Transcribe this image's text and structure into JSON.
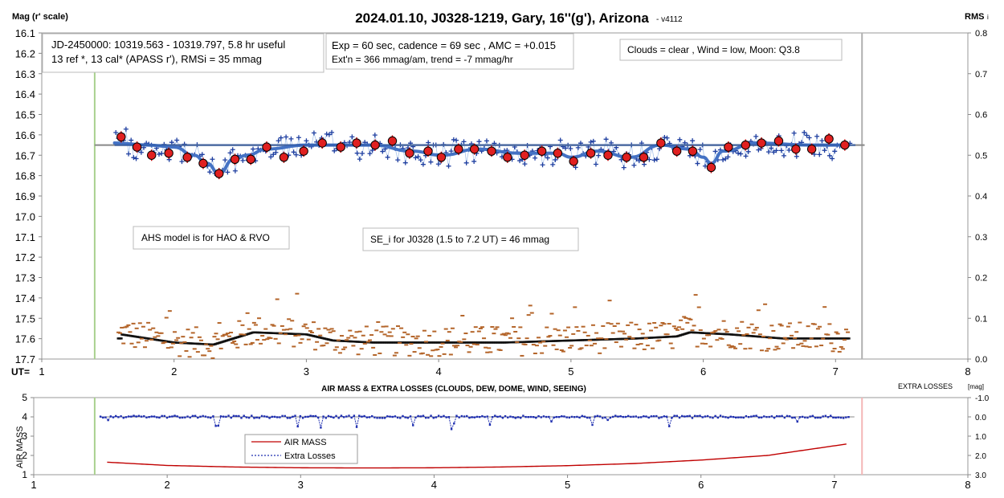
{
  "chart_data": [
    {
      "type": "scatter",
      "title": "2024.01.10, J0328-1219, Gary, 16''(g'), Arizona",
      "version": "- v4112",
      "ylabel": "Mag (r' scale)",
      "y2label": "RMS",
      "y2label_suffix": "i",
      "xlabel": "UT=",
      "xlim": [
        1,
        8
      ],
      "ylim": [
        16.1,
        17.7
      ],
      "y2lim": [
        0.0,
        0.8
      ],
      "xticks": [
        "1",
        "2",
        "3",
        "4",
        "5",
        "6",
        "7",
        "8"
      ],
      "yticks": [
        "16.1",
        "16.2",
        "16.3",
        "16.4",
        "16.5",
        "16.6",
        "16.7",
        "16.8",
        "16.9",
        "17.0",
        "17.1",
        "17.2",
        "17.3",
        "17.4",
        "17.5",
        "17.6",
        "17.7"
      ],
      "y2ticks": [
        "0.8",
        "0.7",
        "0.6",
        "0.5",
        "0.4",
        "0.3",
        "0.2",
        "0.1",
        "0.0"
      ],
      "vlines": {
        "start_ut": 1.4,
        "end_ut": 7.2
      },
      "reference_line_mag": 16.65,
      "annotations": {
        "jd": "JD-2450000: 10319.563 - 10319.797, 5.8 hr useful",
        "refs": "13 ref *, 13 cal*  (APASS r'), RMSi = 35 mmag",
        "exp": "Exp = 60 sec, cadence = 69 sec , AMC = +0.015",
        "ext": "Ext'n = 366 mmag/am, trend = -7 mmag/hr",
        "clouds": "Clouds = clear , Wind = low,  Moon:  Q3.8",
        "ahs": "AHS model is for HAO & RVO",
        "se": "SE_i for J0328 (1.5 to 7.2 UT) = 46 mmag"
      },
      "binned_points": [
        {
          "x": 1.6,
          "y": 16.61
        },
        {
          "x": 1.72,
          "y": 16.66
        },
        {
          "x": 1.83,
          "y": 16.7
        },
        {
          "x": 1.96,
          "y": 16.69
        },
        {
          "x": 2.1,
          "y": 16.71
        },
        {
          "x": 2.22,
          "y": 16.74
        },
        {
          "x": 2.34,
          "y": 16.79
        },
        {
          "x": 2.46,
          "y": 16.72
        },
        {
          "x": 2.58,
          "y": 16.72
        },
        {
          "x": 2.7,
          "y": 16.66
        },
        {
          "x": 2.83,
          "y": 16.71
        },
        {
          "x": 2.98,
          "y": 16.68
        },
        {
          "x": 3.12,
          "y": 16.64
        },
        {
          "x": 3.26,
          "y": 16.66
        },
        {
          "x": 3.38,
          "y": 16.64
        },
        {
          "x": 3.52,
          "y": 16.65
        },
        {
          "x": 3.65,
          "y": 16.63
        },
        {
          "x": 3.78,
          "y": 16.69
        },
        {
          "x": 3.92,
          "y": 16.68
        },
        {
          "x": 4.02,
          "y": 16.71
        },
        {
          "x": 4.15,
          "y": 16.67
        },
        {
          "x": 4.27,
          "y": 16.67
        },
        {
          "x": 4.4,
          "y": 16.68
        },
        {
          "x": 4.52,
          "y": 16.71
        },
        {
          "x": 4.65,
          "y": 16.7
        },
        {
          "x": 4.78,
          "y": 16.68
        },
        {
          "x": 4.9,
          "y": 16.69
        },
        {
          "x": 5.02,
          "y": 16.73
        },
        {
          "x": 5.15,
          "y": 16.69
        },
        {
          "x": 5.28,
          "y": 16.7
        },
        {
          "x": 5.42,
          "y": 16.71
        },
        {
          "x": 5.55,
          "y": 16.71
        },
        {
          "x": 5.68,
          "y": 16.64
        },
        {
          "x": 5.8,
          "y": 16.68
        },
        {
          "x": 5.92,
          "y": 16.68
        },
        {
          "x": 6.06,
          "y": 16.76
        },
        {
          "x": 6.19,
          "y": 16.66
        },
        {
          "x": 6.32,
          "y": 16.65
        },
        {
          "x": 6.44,
          "y": 16.64
        },
        {
          "x": 6.57,
          "y": 16.63
        },
        {
          "x": 6.7,
          "y": 16.67
        },
        {
          "x": 6.82,
          "y": 16.67
        },
        {
          "x": 6.95,
          "y": 16.62
        },
        {
          "x": 7.07,
          "y": 16.65
        }
      ],
      "model_curve": [
        {
          "x": 1.55,
          "y": 16.64
        },
        {
          "x": 1.8,
          "y": 16.65
        },
        {
          "x": 2.0,
          "y": 16.66
        },
        {
          "x": 2.15,
          "y": 16.7
        },
        {
          "x": 2.25,
          "y": 16.74
        },
        {
          "x": 2.34,
          "y": 16.79
        },
        {
          "x": 2.45,
          "y": 16.72
        },
        {
          "x": 2.55,
          "y": 16.7
        },
        {
          "x": 2.7,
          "y": 16.67
        },
        {
          "x": 3.0,
          "y": 16.65
        },
        {
          "x": 3.5,
          "y": 16.65
        },
        {
          "x": 3.8,
          "y": 16.68
        },
        {
          "x": 4.02,
          "y": 16.7
        },
        {
          "x": 4.3,
          "y": 16.67
        },
        {
          "x": 4.6,
          "y": 16.69
        },
        {
          "x": 4.9,
          "y": 16.69
        },
        {
          "x": 5.0,
          "y": 16.71
        },
        {
          "x": 5.2,
          "y": 16.68
        },
        {
          "x": 5.45,
          "y": 16.71
        },
        {
          "x": 5.68,
          "y": 16.65
        },
        {
          "x": 5.9,
          "y": 16.67
        },
        {
          "x": 6.0,
          "y": 16.71
        },
        {
          "x": 6.06,
          "y": 16.74
        },
        {
          "x": 6.15,
          "y": 16.68
        },
        {
          "x": 6.4,
          "y": 16.64
        },
        {
          "x": 6.8,
          "y": 16.65
        },
        {
          "x": 7.1,
          "y": 16.65
        }
      ],
      "rms_profile": [
        {
          "x": 1.6,
          "y": 0.06
        },
        {
          "x": 2.0,
          "y": 0.04
        },
        {
          "x": 2.3,
          "y": 0.035
        },
        {
          "x": 2.45,
          "y": 0.05
        },
        {
          "x": 2.6,
          "y": 0.065
        },
        {
          "x": 3.0,
          "y": 0.06
        },
        {
          "x": 3.2,
          "y": 0.045
        },
        {
          "x": 3.5,
          "y": 0.04
        },
        {
          "x": 4.0,
          "y": 0.04
        },
        {
          "x": 4.5,
          "y": 0.04
        },
        {
          "x": 5.0,
          "y": 0.045
        },
        {
          "x": 5.5,
          "y": 0.05
        },
        {
          "x": 5.8,
          "y": 0.055
        },
        {
          "x": 5.9,
          "y": 0.065
        },
        {
          "x": 6.2,
          "y": 0.06
        },
        {
          "x": 6.6,
          "y": 0.05
        },
        {
          "x": 7.1,
          "y": 0.05
        }
      ]
    },
    {
      "type": "line",
      "title": "AIR MASS & EXTRA LOSSES (CLOUDS, DEW, DOME, WIND, SEEING)",
      "ylabel": "AIR MASS",
      "y2label": "EXTRA LOSSES",
      "y2label_unit": "[mag]",
      "xlim": [
        1,
        8
      ],
      "ylim": [
        1,
        5
      ],
      "y2lim": [
        -1.0,
        3.0
      ],
      "xticks": [
        "1",
        "2",
        "3",
        "4",
        "5",
        "6",
        "7",
        "8"
      ],
      "yticks": [
        "5",
        "4",
        "3",
        "2",
        "1"
      ],
      "y2ticks": [
        "-1.0",
        "0.0",
        "1.0",
        "2.0",
        "3.0"
      ],
      "legend": [
        "AIR MASS",
        "Extra Losses"
      ],
      "series": [
        {
          "name": "AIR MASS",
          "color": "#c00000",
          "points": [
            {
              "x": 1.55,
              "y": 1.65
            },
            {
              "x": 2.0,
              "y": 1.48
            },
            {
              "x": 2.5,
              "y": 1.4
            },
            {
              "x": 3.0,
              "y": 1.36
            },
            {
              "x": 3.5,
              "y": 1.35
            },
            {
              "x": 4.0,
              "y": 1.36
            },
            {
              "x": 4.5,
              "y": 1.4
            },
            {
              "x": 5.0,
              "y": 1.47
            },
            {
              "x": 5.5,
              "y": 1.58
            },
            {
              "x": 6.0,
              "y": 1.76
            },
            {
              "x": 6.5,
              "y": 2.0
            },
            {
              "x": 7.1,
              "y": 2.6
            }
          ]
        },
        {
          "name": "Extra Losses",
          "color": "#1f2fb0",
          "points": [
            {
              "x": 1.5,
              "y": 0.0
            },
            {
              "x": 7.1,
              "y": 0.0
            }
          ]
        }
      ]
    }
  ]
}
